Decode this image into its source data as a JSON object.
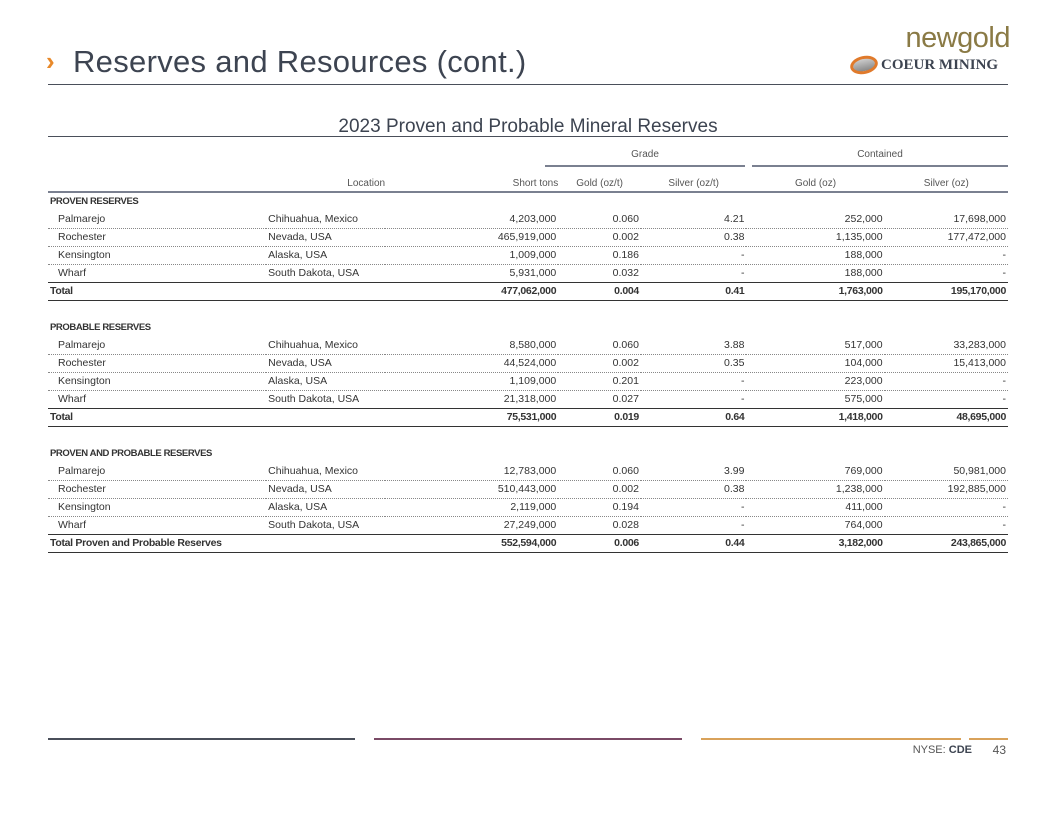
{
  "header": {
    "chevron": "›",
    "title": "Reserves and Resources (cont.)",
    "logo_newgold": "newgold",
    "logo_coeur": "COEUR MINING"
  },
  "table": {
    "title": "2023 Proven and Probable Mineral Reserves",
    "groups": {
      "grade": "Grade",
      "contained": "Contained"
    },
    "columns": [
      "",
      "Location",
      "Short tons",
      "Gold (oz/t)",
      "Silver (oz/t)",
      "Gold (oz)",
      "Silver (oz)"
    ],
    "sections": [
      {
        "heading": "PROVEN RESERVES",
        "rows": [
          [
            "Palmarejo",
            "Chihuahua, Mexico",
            "4,203,000",
            "0.060",
            "4.21",
            "252,000",
            "17,698,000"
          ],
          [
            "Rochester",
            "Nevada, USA",
            "465,919,000",
            "0.002",
            "0.38",
            "1,135,000",
            "177,472,000"
          ],
          [
            "Kensington",
            "Alaska, USA",
            "1,009,000",
            "0.186",
            "-",
            "188,000",
            "-"
          ],
          [
            "Wharf",
            "South Dakota, USA",
            "5,931,000",
            "0.032",
            "-",
            "188,000",
            "-"
          ]
        ],
        "total": [
          "Total",
          "",
          "477,062,000",
          "0.004",
          "0.41",
          "1,763,000",
          "195,170,000"
        ]
      },
      {
        "heading": "PROBABLE RESERVES",
        "rows": [
          [
            "Palmarejo",
            "Chihuahua, Mexico",
            "8,580,000",
            "0.060",
            "3.88",
            "517,000",
            "33,283,000"
          ],
          [
            "Rochester",
            "Nevada, USA",
            "44,524,000",
            "0.002",
            "0.35",
            "104,000",
            "15,413,000"
          ],
          [
            "Kensington",
            "Alaska, USA",
            "1,109,000",
            "0.201",
            "-",
            "223,000",
            "-"
          ],
          [
            "Wharf",
            "South Dakota, USA",
            "21,318,000",
            "0.027",
            "-",
            "575,000",
            "-"
          ]
        ],
        "total": [
          "Total",
          "",
          "75,531,000",
          "0.019",
          "0.64",
          "1,418,000",
          "48,695,000"
        ]
      },
      {
        "heading": "PROVEN AND PROBABLE RESERVES",
        "rows": [
          [
            "Palmarejo",
            "Chihuahua, Mexico",
            "12,783,000",
            "0.060",
            "3.99",
            "769,000",
            "50,981,000"
          ],
          [
            "Rochester",
            "Nevada, USA",
            "510,443,000",
            "0.002",
            "0.38",
            "1,238,000",
            "192,885,000"
          ],
          [
            "Kensington",
            "Alaska, USA",
            "2,119,000",
            "0.194",
            "-",
            "411,000",
            "-"
          ],
          [
            "Wharf",
            "South Dakota, USA",
            "27,249,000",
            "0.028",
            "-",
            "764,000",
            "-"
          ]
        ],
        "total": [
          "Total Proven and Probable Reserves",
          "",
          "552,594,000",
          "0.006",
          "0.44",
          "3,182,000",
          "243,865,000"
        ]
      }
    ]
  },
  "footer": {
    "exchange": "NYSE:",
    "ticker": "CDE",
    "page": "43"
  },
  "colors": {
    "accent": "#e8892a",
    "title": "#3d4451",
    "footer_lines": [
      "#4a4f5a",
      "#7a4a66",
      "#d9a25a"
    ]
  }
}
